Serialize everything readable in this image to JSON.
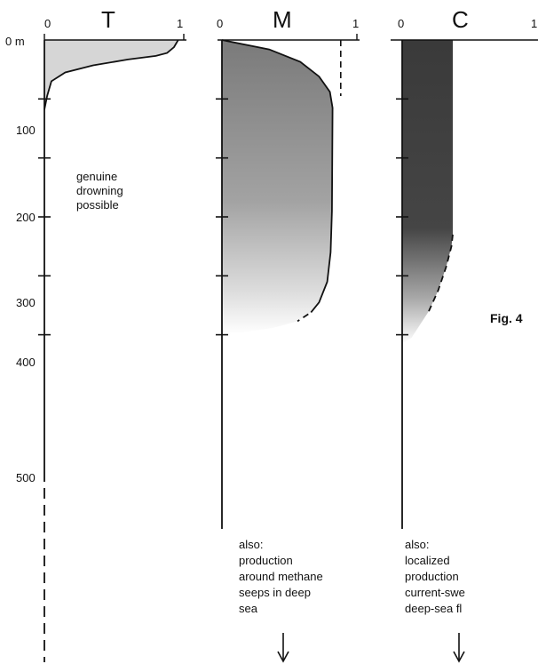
{
  "chart_data": {
    "type": "area",
    "figure_label": "Fig. 4",
    "y_axis": {
      "unit_label": "0 m",
      "ticks": [
        "100",
        "200",
        "300",
        "400",
        "500"
      ],
      "range": [
        0,
        600
      ],
      "inverted": true
    },
    "panels": [
      {
        "title": "T",
        "x_ticks": [
          "0",
          "1"
        ],
        "xlim": [
          0,
          1
        ],
        "fill_color": "#d6d6d6",
        "fill_style": "flat",
        "solid_curve": [
          [
            0.96,
            0
          ],
          [
            0.93,
            12
          ],
          [
            0.88,
            22
          ],
          [
            0.8,
            27
          ],
          [
            0.6,
            33
          ],
          [
            0.35,
            43
          ],
          [
            0.15,
            55
          ],
          [
            0.05,
            70
          ],
          [
            0.02,
            95
          ],
          [
            0,
            118
          ]
        ],
        "note": [
          "genuine",
          "drowning",
          "possible"
        ]
      },
      {
        "title": "M",
        "x_ticks": [
          "0",
          "1"
        ],
        "xlim": [
          0,
          1
        ],
        "fill_color": "#808080",
        "fill_style": "gradient-fade-at-depth",
        "solid_curve": [
          [
            0,
            0
          ],
          [
            0.35,
            16
          ],
          [
            0.58,
            37
          ],
          [
            0.72,
            62
          ],
          [
            0.8,
            88
          ],
          [
            0.82,
            115
          ],
          [
            0.815,
            290
          ],
          [
            0.805,
            360
          ],
          [
            0.78,
            410
          ],
          [
            0.72,
            445
          ],
          [
            0.66,
            462
          ]
        ],
        "dashed_curve": [
          [
            0.64,
            465
          ],
          [
            0.56,
            477
          ]
        ],
        "upper_dashed_line": [
          [
            0.88,
            0
          ],
          [
            0.88,
            95
          ]
        ],
        "note": [
          "also:",
          "production",
          "around methane",
          "seeps in deep",
          "sea"
        ],
        "arrow": "down"
      },
      {
        "title": "C",
        "x_ticks": [
          "0",
          "1"
        ],
        "xlim": [
          0,
          1
        ],
        "fill_color": "#3a3a3a",
        "fill_style": "gradient-fade-at-depth",
        "solid_curve": [
          [
            0.38,
            0
          ],
          [
            0.38,
            330
          ]
        ],
        "dashed_curve": [
          [
            0.38,
            330
          ],
          [
            0.37,
            350
          ],
          [
            0.33,
            385
          ],
          [
            0.27,
            425
          ],
          [
            0.2,
            460
          ]
        ],
        "note": [
          "also:",
          "localized",
          "production",
          "current-swe",
          "deep-sea fl"
        ],
        "arrow": "down"
      }
    ]
  }
}
